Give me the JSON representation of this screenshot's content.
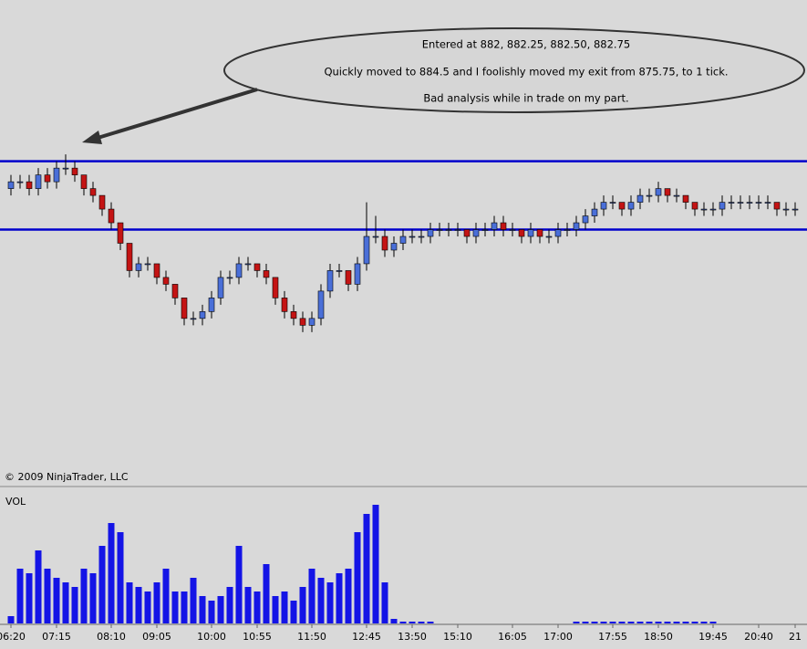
{
  "chart_data": {
    "type": "candlestick",
    "annotation": [
      "Entered at 882, 882.25, 882.50, 882.75",
      "Quickly moved to 884.5 and I foolishly moved my exit from 875.75, to 1 tick.",
      "Bad analysis while in trade on my part."
    ],
    "copyright": "© 2009 NinjaTrader, LLC",
    "volume_label": "VOL",
    "categories": [
      "06:20",
      null,
      null,
      null,
      null,
      "07:15",
      null,
      null,
      null,
      null,
      null,
      "08:10",
      null,
      null,
      null,
      null,
      "09:05",
      null,
      null,
      null,
      null,
      null,
      "10:00",
      null,
      null,
      null,
      null,
      "10:55",
      null,
      null,
      null,
      null,
      null,
      "11:50",
      null,
      null,
      null,
      null,
      null,
      "12:45",
      null,
      null,
      null,
      null,
      "13:50",
      null,
      null,
      null,
      null,
      "15:10",
      null,
      null,
      null,
      null,
      null,
      "16:05",
      null,
      null,
      null,
      null,
      "17:00",
      null,
      null,
      null,
      null,
      null,
      "17:55",
      null,
      null,
      null,
      null,
      "18:50",
      null,
      null,
      null,
      null,
      null,
      "19:45",
      null,
      null,
      null,
      null,
      "20:40",
      null,
      null,
      null,
      "21"
    ],
    "open": [
      883.5,
      883.75,
      883.75,
      883.5,
      884.0,
      883.75,
      884.25,
      884.25,
      884.0,
      883.5,
      883.25,
      882.75,
      882.25,
      881.5,
      880.5,
      880.75,
      880.75,
      880.25,
      880.0,
      879.5,
      878.75,
      878.75,
      879.0,
      879.5,
      880.25,
      880.25,
      880.75,
      880.75,
      880.5,
      880.25,
      879.5,
      879.0,
      878.75,
      878.5,
      878.75,
      879.75,
      880.5,
      880.5,
      880.0,
      880.75,
      881.75,
      881.75,
      881.25,
      881.5,
      881.75,
      881.75,
      881.75,
      882.0,
      882.0,
      882.0,
      882.0,
      881.75,
      882.0,
      882.0,
      882.25,
      882.0,
      882.0,
      881.75,
      882.0,
      881.75,
      881.75,
      882.0,
      882.0,
      882.25,
      882.5,
      882.75,
      883.0,
      883.0,
      882.75,
      883.0,
      883.25,
      883.25,
      883.5,
      883.25,
      883.25,
      883.0,
      882.75,
      882.75,
      882.75,
      883.0,
      883.0,
      883.0,
      883.0,
      883.0,
      883.0,
      882.75,
      882.75
    ],
    "close": [
      883.75,
      883.75,
      883.5,
      884.0,
      883.75,
      884.25,
      884.25,
      884.0,
      883.5,
      883.25,
      882.75,
      882.25,
      881.5,
      880.5,
      880.75,
      880.75,
      880.25,
      880.0,
      879.5,
      878.75,
      878.75,
      879.0,
      879.5,
      880.25,
      880.25,
      880.75,
      880.75,
      880.5,
      880.25,
      879.5,
      879.0,
      878.75,
      878.5,
      878.75,
      879.75,
      880.5,
      880.5,
      880.0,
      880.75,
      881.75,
      881.75,
      881.25,
      881.5,
      881.75,
      881.75,
      881.75,
      882.0,
      882.0,
      882.0,
      882.0,
      881.75,
      882.0,
      882.0,
      882.25,
      882.0,
      882.0,
      881.75,
      882.0,
      881.75,
      881.75,
      882.0,
      882.0,
      882.25,
      882.5,
      882.75,
      883.0,
      883.0,
      882.75,
      883.0,
      883.25,
      883.25,
      883.5,
      883.25,
      883.25,
      883.0,
      882.75,
      882.75,
      882.75,
      883.0,
      883.0,
      883.0,
      883.0,
      883.0,
      883.0,
      882.75,
      882.75,
      882.75
    ],
    "high": [
      884.0,
      884.0,
      884.0,
      884.25,
      884.25,
      884.5,
      884.75,
      884.5,
      884.0,
      883.75,
      883.25,
      883.0,
      882.25,
      881.5,
      881.0,
      881.0,
      880.75,
      880.5,
      880.0,
      879.5,
      879.0,
      879.25,
      879.75,
      880.5,
      880.5,
      881.0,
      881.0,
      880.75,
      880.75,
      880.25,
      879.75,
      879.25,
      879.0,
      879.0,
      880.0,
      880.75,
      880.75,
      880.5,
      881.0,
      883.0,
      882.5,
      882.0,
      881.75,
      882.0,
      882.0,
      882.0,
      882.25,
      882.25,
      882.25,
      882.25,
      882.0,
      882.25,
      882.25,
      882.5,
      882.5,
      882.25,
      882.0,
      882.25,
      882.0,
      882.0,
      882.25,
      882.25,
      882.5,
      882.75,
      883.0,
      883.25,
      883.25,
      883.0,
      883.25,
      883.5,
      883.5,
      883.75,
      883.5,
      883.5,
      883.25,
      883.0,
      883.0,
      883.0,
      883.25,
      883.25,
      883.25,
      883.25,
      883.25,
      883.25,
      883.0,
      883.0,
      883.0
    ],
    "low": [
      883.25,
      883.5,
      883.25,
      883.25,
      883.5,
      883.5,
      884.0,
      883.75,
      883.25,
      883.0,
      882.5,
      882.0,
      881.25,
      880.25,
      880.25,
      880.5,
      880.0,
      879.75,
      879.25,
      878.5,
      878.5,
      878.5,
      878.75,
      879.25,
      880.0,
      880.0,
      880.5,
      880.25,
      880.0,
      879.25,
      878.75,
      878.5,
      878.25,
      878.25,
      878.5,
      879.5,
      880.25,
      879.75,
      879.75,
      880.5,
      881.5,
      881.0,
      881.0,
      881.25,
      881.5,
      881.5,
      881.5,
      881.75,
      881.75,
      881.75,
      881.5,
      881.5,
      881.75,
      881.75,
      881.75,
      881.75,
      881.5,
      881.5,
      881.5,
      881.5,
      881.5,
      881.75,
      881.75,
      882.0,
      882.25,
      882.5,
      882.75,
      882.5,
      882.5,
      882.75,
      883.0,
      883.0,
      883.0,
      883.0,
      882.75,
      882.5,
      882.5,
      882.5,
      882.5,
      882.75,
      882.75,
      882.75,
      882.75,
      882.75,
      882.5,
      882.5,
      882.5
    ],
    "volume": [
      8,
      60,
      55,
      80,
      60,
      50,
      45,
      40,
      60,
      55,
      85,
      110,
      100,
      45,
      40,
      35,
      45,
      60,
      35,
      35,
      50,
      30,
      25,
      30,
      40,
      85,
      40,
      35,
      65,
      30,
      35,
      25,
      40,
      60,
      50,
      45,
      55,
      60,
      100,
      120,
      130,
      45,
      5,
      2,
      2,
      2,
      2,
      0,
      0,
      0,
      0,
      0,
      0,
      0,
      0,
      0,
      0,
      0,
      0,
      0,
      0,
      0,
      2,
      2,
      2,
      2,
      2,
      2,
      2,
      2,
      2,
      2,
      2,
      2,
      2,
      2,
      2,
      2,
      0,
      0,
      0,
      0,
      0,
      0,
      0,
      0,
      0
    ],
    "ylim": [
      872.7,
      890.4
    ],
    "volume_ylim": [
      0,
      140
    ],
    "hlines": [
      884.5,
      882
    ],
    "up_color": "#4a6fd8",
    "down_color": "#c41414",
    "line_color": "#0000cc",
    "volume_color": "#1414e6"
  }
}
